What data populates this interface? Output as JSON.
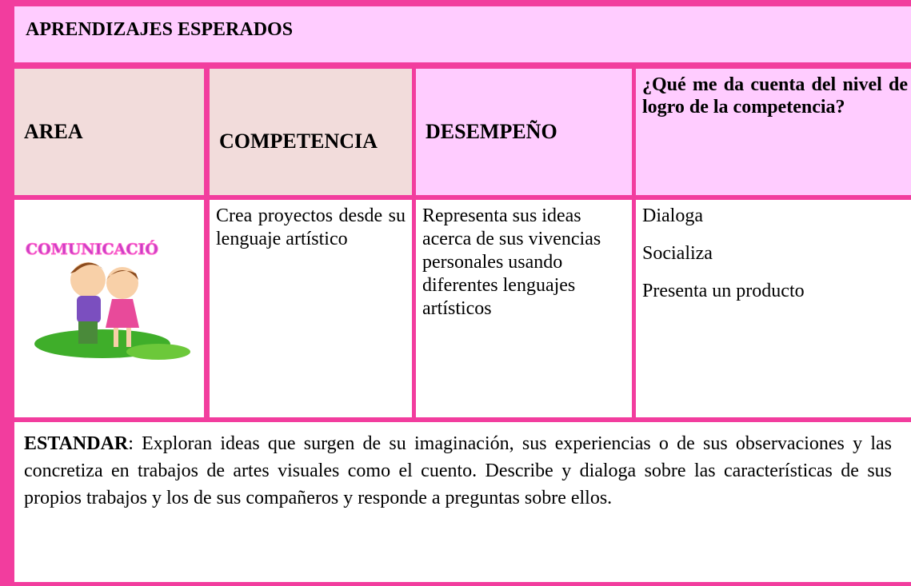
{
  "header": {
    "title": "APRENDIZAJES ESPERADOS"
  },
  "table": {
    "headers": [
      "AREA",
      "COMPETENCIA",
      "DESEMPEÑO",
      "¿Qué me da cuenta del nivel de logro de la competencia?"
    ],
    "rows": [
      [
        "COMUNICACIÓ",
        "Crea proyectos desde su lenguaje artístico",
        "Representa sus ideas acerca de sus vivencias personales usando diferentes lenguajes artísticos",
        [
          "Dialoga",
          "Socializa",
          "Presenta un producto"
        ]
      ]
    ]
  },
  "standard": {
    "label": "ESTANDAR",
    "text": ": Exploran ideas que surgen de su imaginación, sus experiencias o de sus observaciones y las concretiza en trabajos de artes visuales como el cuento. Describe y dialoga sobre las características de sus propios trabajos y los de sus compañeros y responde a preguntas sobre ellos."
  }
}
